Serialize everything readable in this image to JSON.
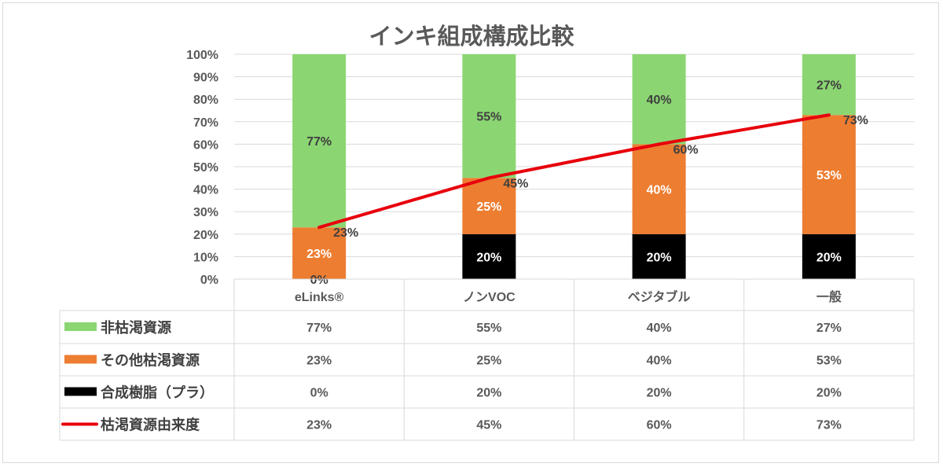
{
  "chart_data": {
    "type": "bar",
    "stacked": true,
    "title": "インキ組成構成比較",
    "categories": [
      "eLinks®",
      "ノンVOC",
      "ベジタブル",
      "一般"
    ],
    "ylim": [
      0,
      100
    ],
    "yticks": [
      "0%",
      "10%",
      "20%",
      "30%",
      "40%",
      "50%",
      "60%",
      "70%",
      "80%",
      "90%",
      "100%"
    ],
    "grid": true,
    "legend": "data-table",
    "series": [
      {
        "name": "合成樹脂（プラ）",
        "kind": "bar",
        "color": "#000000",
        "label_color": "#ffffff",
        "values": [
          0,
          20,
          20,
          20
        ],
        "labels": [
          "0%",
          "20%",
          "20%",
          "20%"
        ]
      },
      {
        "name": "その他枯渇資源",
        "kind": "bar",
        "color": "#ed7d31",
        "label_color": "#ffffff",
        "values": [
          23,
          25,
          40,
          53
        ],
        "labels": [
          "23%",
          "25%",
          "40%",
          "53%"
        ]
      },
      {
        "name": "非枯渇資源",
        "kind": "bar",
        "color": "#8bd672",
        "label_color": "#404040",
        "values": [
          77,
          55,
          40,
          27
        ],
        "labels": [
          "77%",
          "55%",
          "40%",
          "27%"
        ]
      },
      {
        "name": "枯渇資源由来度",
        "kind": "line",
        "color": "#e8000b",
        "label_color": "#404040",
        "values": [
          23,
          45,
          60,
          73
        ],
        "labels": [
          "23%",
          "45%",
          "60%",
          "73%"
        ]
      }
    ],
    "table_order": [
      2,
      1,
      0,
      3
    ]
  }
}
